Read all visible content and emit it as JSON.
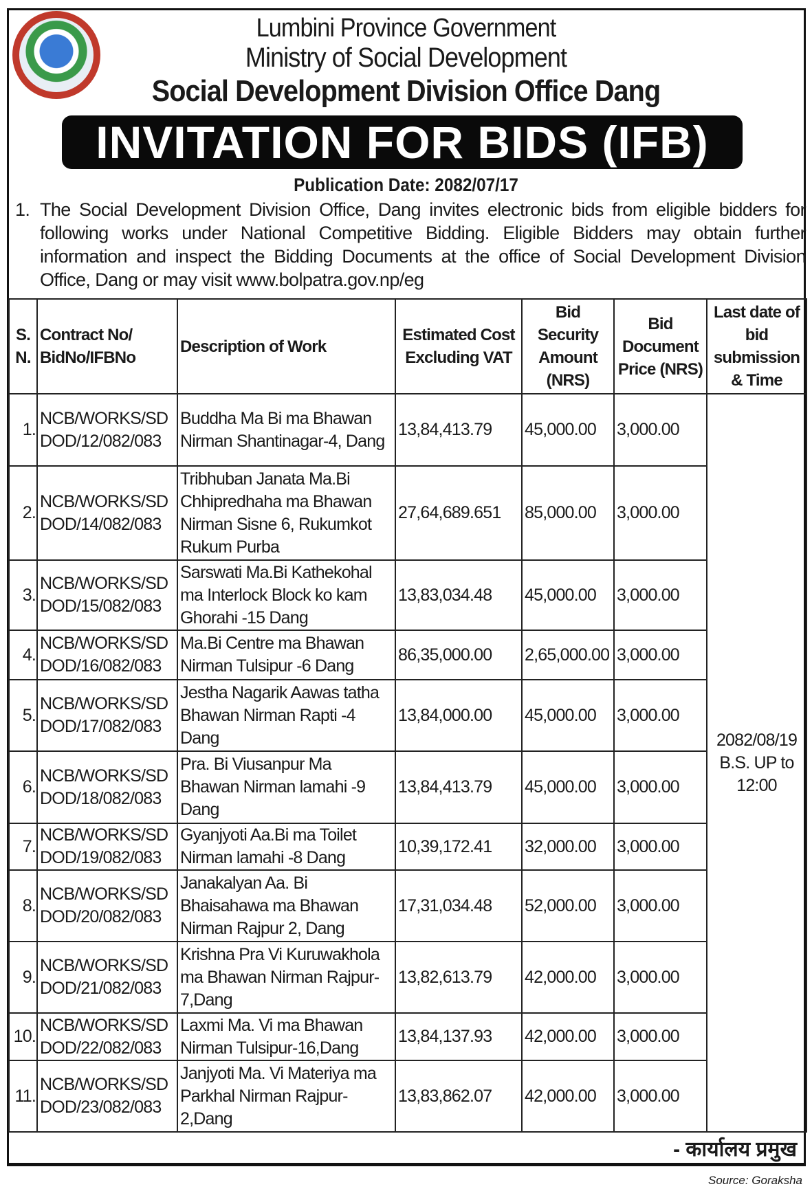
{
  "header": {
    "line1": "Lumbini Province Government",
    "line2": "Ministry of Social Development",
    "line3": "Social Development Division Office Dang",
    "banner": "INVITATION FOR BIDS (IFB)",
    "publication": "Publication Date: 2082/07/17"
  },
  "intro": {
    "number": "1.",
    "text": "The Social Development Division Office, Dang invites electronic bids from eligible bidders for following works under National Competitive Bidding. Eligible Bidders may obtain further information and inspect the Bidding Documents at the office of Social Development Division Office, Dang or may visit www.bolpatra.gov.np/eg"
  },
  "table": {
    "headers": [
      "S. N.",
      "Contract No/ BidNo/IFBNo",
      "Description of Work",
      "Estimated Cost Excluding VAT",
      "Bid Security Amount (NRS)",
      "Bid Document Price (NRS)",
      "Last date of bid submission & Time"
    ],
    "last_date": "2082/08/19 B.S. UP to 12:00",
    "rows": [
      {
        "sn": "1.",
        "contract": "NCB/WORKS/SD DOD/12/082/083",
        "desc": "Buddha Ma Bi ma Bhawan Nirman Shantinagar-4, Dang",
        "cost": "13,84,413.79",
        "security": "45,000.00",
        "doc": "3,000.00"
      },
      {
        "sn": "2.",
        "contract": "NCB/WORKS/SD DOD/14/082/083",
        "desc": "Tribhuban Janata Ma.Bi Chhipredhaha ma Bhawan Nirman Sisne 6, Rukumkot Rukum Purba",
        "cost": "27,64,689.651",
        "security": "85,000.00",
        "doc": "3,000.00"
      },
      {
        "sn": "3.",
        "contract": "NCB/WORKS/SD DOD/15/082/083",
        "desc": "Sarswati Ma.Bi Kathekohal ma Interlock Block ko kam Ghorahi -15 Dang",
        "cost": "13,83,034.48",
        "security": "45,000.00",
        "doc": "3,000.00"
      },
      {
        "sn": "4.",
        "contract": "NCB/WORKS/SD DOD/16/082/083",
        "desc": "Ma.Bi Centre ma Bhawan Nirman Tulsipur -6 Dang",
        "cost": "86,35,000.00",
        "security": "2,65,000.00",
        "doc": "3,000.00"
      },
      {
        "sn": "5.",
        "contract": "NCB/WORKS/SD DOD/17/082/083",
        "desc": "Jestha Nagarik Aawas tatha Bhawan Nirman Rapti -4 Dang",
        "cost": "13,84,000.00",
        "security": "45,000.00",
        "doc": "3,000.00"
      },
      {
        "sn": "6.",
        "contract": "NCB/WORKS/SD DOD/18/082/083",
        "desc": "Pra. Bi Viusanpur Ma Bhawan Nirman lamahi -9 Dang",
        "cost": "13,84,413.79",
        "security": "45,000.00",
        "doc": "3,000.00"
      },
      {
        "sn": "7.",
        "contract": "NCB/WORKS/SD DOD/19/082/083",
        "desc": "Gyanjyoti Aa.Bi ma Toilet Nirman lamahi -8 Dang",
        "cost": "10,39,172.41",
        "security": "32,000.00",
        "doc": "3,000.00"
      },
      {
        "sn": "8.",
        "contract": "NCB/WORKS/SD DOD/20/082/083",
        "desc": "Janakalyan Aa. Bi Bhaisahawa ma Bhawan Nirman Rajpur 2, Dang",
        "cost": "17,31,034.48",
        "security": "52,000.00",
        "doc": "3,000.00"
      },
      {
        "sn": "9.",
        "contract": "NCB/WORKS/SD DOD/21/082/083",
        "desc": "Krishna Pra Vi Kuruwakhola ma Bhawan Nirman Rajpur-7,Dang",
        "cost": "13,82,613.79",
        "security": "42,000.00",
        "doc": "3,000.00"
      },
      {
        "sn": "10.",
        "contract": "NCB/WORKS/SD DOD/22/082/083",
        "desc": "Laxmi Ma. Vi ma Bhawan Nirman Tulsipur-16,Dang",
        "cost": "13,84,137.93",
        "security": "42,000.00",
        "doc": "3,000.00"
      },
      {
        "sn": "11.",
        "contract": "NCB/WORKS/SD DOD/23/082/083",
        "desc": "Janjyoti Ma. Vi Materiya ma Parkhal Nirman Rajpur-2,Dang",
        "cost": "13,83,862.07",
        "security": "42,000.00",
        "doc": "3,000.00"
      }
    ]
  },
  "signature": "- कार्यालय प्रमुख",
  "source": "Source: Goraksha"
}
